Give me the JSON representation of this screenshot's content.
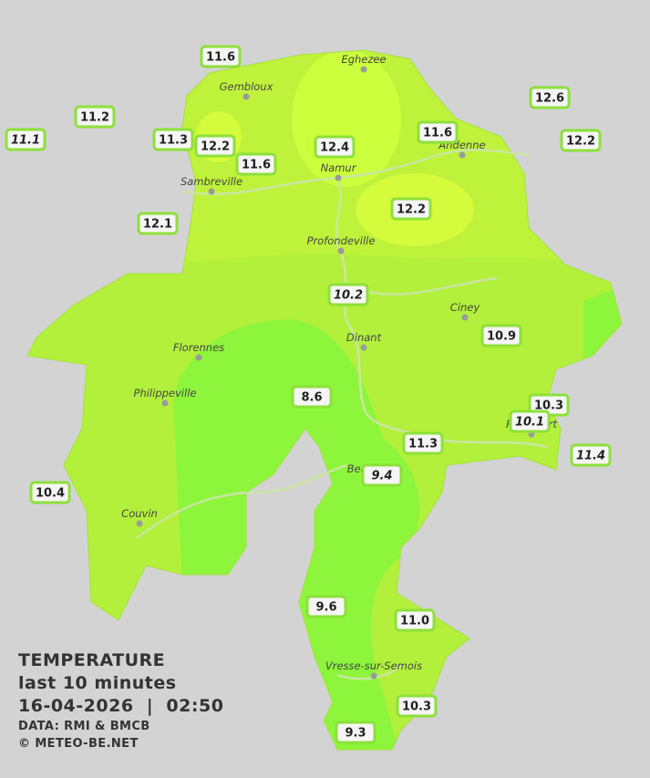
{
  "legend": {
    "title": "TEMPERATURE",
    "period": "last 10 minutes",
    "datetime": "16-04-2026  |  02:50",
    "source": "DATA: RMI & BMCB",
    "copyright": "© METEO-BE.NET"
  },
  "cities": [
    "Eghezee",
    "Gembloux",
    "Andenne",
    "Namur",
    "Sambreville",
    "Profondeville",
    "Ciney",
    "Dinant",
    "Florennes",
    "Philippeville",
    "Rochefort",
    "Beauraing",
    "Couvin",
    "Vresse-sur-Semois"
  ],
  "stations": [
    "11.6",
    "11.2",
    "11.1",
    "11.3",
    "12.2",
    "11.6",
    "12.4",
    "11.6",
    "12.6",
    "12.2",
    "12.2",
    "12.1",
    "10.2",
    "10.9",
    "8.6",
    "10.3",
    "10.1",
    "11.3",
    "11.4",
    "9.4",
    "10.4",
    "9.6",
    "11.0",
    "10.3",
    "9.3"
  ]
}
